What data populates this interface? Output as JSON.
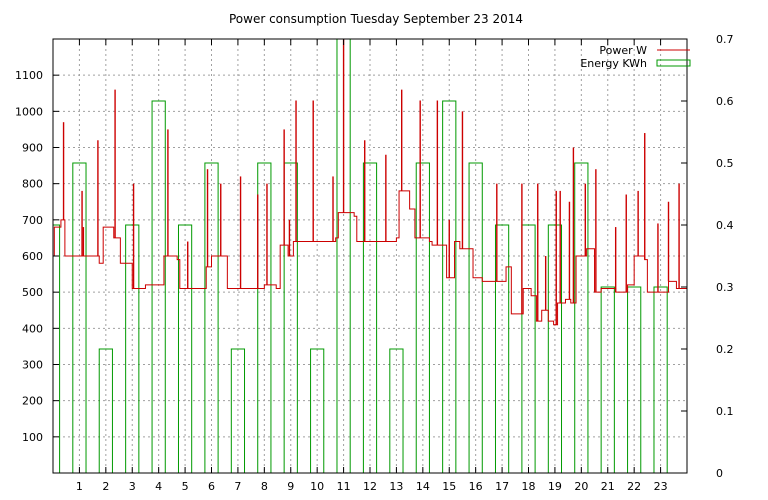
{
  "chart_data": {
    "type": "line",
    "title": "Power consumption Tuesday September 23 2014",
    "xlabel": "",
    "ylabel": "",
    "y2label": "",
    "xlim": [
      0,
      24
    ],
    "ylim": [
      0,
      1200
    ],
    "y2lim": [
      0,
      0.7
    ],
    "x_ticks": [
      "1",
      "2",
      "3",
      "4",
      "5",
      "6",
      "7",
      "8",
      "9",
      "10",
      "11",
      "12",
      "13",
      "14",
      "15",
      "16",
      "17",
      "18",
      "19",
      "20",
      "21",
      "22",
      "23"
    ],
    "y_ticks": [
      "100",
      "200",
      "300",
      "400",
      "500",
      "600",
      "700",
      "800",
      "900",
      "1000",
      "1100"
    ],
    "y2_ticks": [
      "0",
      "0.1",
      "0.2",
      "0.3",
      "0.4",
      "0.5",
      "0.6",
      "0.7"
    ],
    "grid": true,
    "legend_position": "top-right",
    "legend": [
      "Power W",
      "Energy KWh"
    ],
    "colors": {
      "power": "#cc0000",
      "energy": "#009900"
    },
    "series": [
      {
        "name": "Power W",
        "type": "step",
        "points": [
          [
            0.0,
            600
          ],
          [
            0.05,
            680
          ],
          [
            0.3,
            700
          ],
          [
            0.45,
            600
          ],
          [
            0.9,
            600
          ],
          [
            1.2,
            600
          ],
          [
            1.75,
            580
          ],
          [
            1.9,
            680
          ],
          [
            2.3,
            650
          ],
          [
            2.55,
            580
          ],
          [
            3.0,
            510
          ],
          [
            3.5,
            520
          ],
          [
            3.9,
            520
          ],
          [
            4.2,
            600
          ],
          [
            4.7,
            590
          ],
          [
            4.8,
            510
          ],
          [
            5.5,
            510
          ],
          [
            5.8,
            570
          ],
          [
            6.0,
            600
          ],
          [
            6.6,
            510
          ],
          [
            7.5,
            510
          ],
          [
            8.0,
            520
          ],
          [
            8.45,
            510
          ],
          [
            8.6,
            630
          ],
          [
            8.9,
            600
          ],
          [
            9.1,
            640
          ],
          [
            10.0,
            640
          ],
          [
            10.7,
            650
          ],
          [
            10.8,
            720
          ],
          [
            11.4,
            710
          ],
          [
            11.5,
            640
          ],
          [
            12.8,
            640
          ],
          [
            13.0,
            650
          ],
          [
            13.1,
            780
          ],
          [
            13.5,
            730
          ],
          [
            13.7,
            650
          ],
          [
            14.25,
            640
          ],
          [
            14.35,
            630
          ],
          [
            14.9,
            540
          ],
          [
            15.2,
            640
          ],
          [
            15.4,
            620
          ],
          [
            15.8,
            620
          ],
          [
            15.9,
            540
          ],
          [
            16.25,
            530
          ],
          [
            17.05,
            530
          ],
          [
            17.15,
            570
          ],
          [
            17.35,
            440
          ],
          [
            17.6,
            440
          ],
          [
            17.8,
            510
          ],
          [
            18.1,
            490
          ],
          [
            18.3,
            420
          ],
          [
            18.5,
            450
          ],
          [
            18.75,
            420
          ],
          [
            18.95,
            410
          ],
          [
            19.1,
            470
          ],
          [
            19.4,
            480
          ],
          [
            19.6,
            470
          ],
          [
            19.8,
            600
          ],
          [
            20.2,
            620
          ],
          [
            20.5,
            500
          ],
          [
            20.75,
            510
          ],
          [
            21.3,
            500
          ],
          [
            21.75,
            520
          ],
          [
            22.0,
            600
          ],
          [
            22.4,
            590
          ],
          [
            22.5,
            500
          ],
          [
            23.2,
            500
          ],
          [
            23.3,
            530
          ],
          [
            23.6,
            510
          ],
          [
            24.0,
            500
          ]
        ],
        "spikes": [
          [
            0.4,
            970
          ],
          [
            1.1,
            780
          ],
          [
            1.15,
            680
          ],
          [
            1.7,
            920
          ],
          [
            2.35,
            1060
          ],
          [
            3.05,
            800
          ],
          [
            4.35,
            950
          ],
          [
            5.1,
            640
          ],
          [
            5.85,
            840
          ],
          [
            6.35,
            800
          ],
          [
            7.1,
            820
          ],
          [
            7.75,
            770
          ],
          [
            8.1,
            800
          ],
          [
            8.75,
            950
          ],
          [
            8.95,
            700
          ],
          [
            9.2,
            1030
          ],
          [
            9.85,
            1030
          ],
          [
            10.6,
            820
          ],
          [
            11.0,
            1200
          ],
          [
            11.8,
            920
          ],
          [
            12.6,
            880
          ],
          [
            13.2,
            1060
          ],
          [
            13.9,
            1030
          ],
          [
            14.55,
            1030
          ],
          [
            15.0,
            700
          ],
          [
            15.5,
            1000
          ],
          [
            16.8,
            800
          ],
          [
            17.75,
            800
          ],
          [
            18.35,
            800
          ],
          [
            18.65,
            600
          ],
          [
            19.05,
            780
          ],
          [
            19.2,
            780
          ],
          [
            19.55,
            750
          ],
          [
            19.7,
            900
          ],
          [
            20.15,
            800
          ],
          [
            20.55,
            840
          ],
          [
            21.3,
            680
          ],
          [
            21.7,
            770
          ],
          [
            22.15,
            780
          ],
          [
            22.4,
            940
          ],
          [
            22.9,
            690
          ],
          [
            23.3,
            750
          ],
          [
            23.7,
            800
          ]
        ]
      },
      {
        "name": "Energy KWh",
        "type": "bar",
        "bar_width_hours": 0.5,
        "values": [
          0.4,
          0.5,
          0.2,
          0.4,
          0.6,
          0.4,
          0.5,
          0.2,
          0.5,
          0.5,
          0.2,
          0.7,
          0.5,
          0.2,
          0.5,
          0.6,
          0.5,
          0.4,
          0.4,
          0.4,
          0.5,
          0.3,
          0.3,
          0.3
        ]
      }
    ]
  }
}
